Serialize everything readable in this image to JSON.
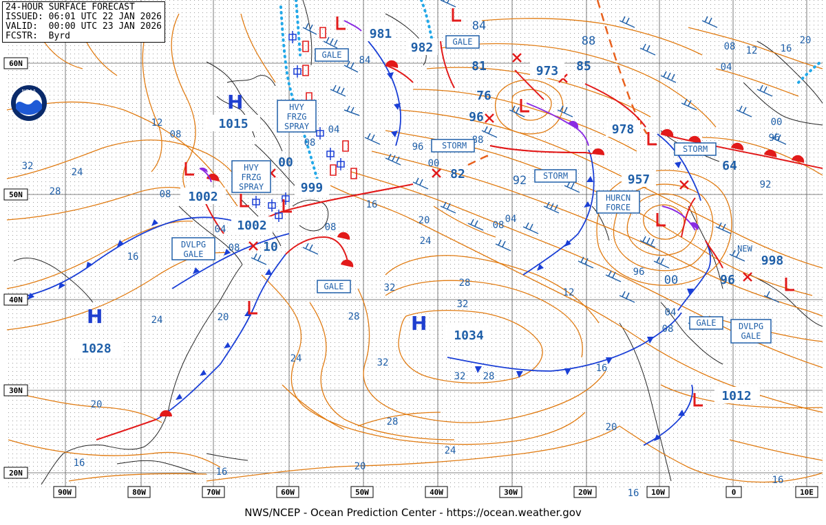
{
  "header": {
    "title": "24-HOUR SURFACE FORECAST",
    "issued": "ISSUED: 06:01 UTC 22 JAN 2026",
    "valid": "VALID:  00:00 UTC 23 JAN 2026",
    "forecaster": "FCSTR:  Byrd"
  },
  "footer": "NWS/NCEP - Ocean Prediction Center - https://ocean.weather.gov",
  "logo_text": "NOAA",
  "colors": {
    "isobar": "#e07a10",
    "label": "#1f5fa8",
    "cold_front": "#1a3fd6",
    "warm_front": "#e21a1a",
    "occluded": "#8a2be2",
    "ice": "#22a8e8",
    "grid": "#6a6a6a"
  },
  "lon_labels": [
    "90W",
    "80W",
    "70W",
    "60W",
    "50W",
    "40W",
    "30W",
    "20W",
    "10W",
    "0",
    "10E"
  ],
  "lat_labels": [
    "60N",
    "50N",
    "40N",
    "30N",
    "20N"
  ],
  "highs": [
    {
      "symbol": "H",
      "pressure": "1015"
    },
    {
      "symbol": "H",
      "pressure": "1028"
    },
    {
      "symbol": "H",
      "pressure": "1034"
    }
  ],
  "lows": [
    {
      "symbol": "L",
      "pressure": "1002"
    },
    {
      "symbol": "L",
      "pressure": "1002"
    },
    {
      "symbol": "L",
      "pressure": "999"
    },
    {
      "symbol": "L",
      "pressure": "973"
    },
    {
      "symbol": "L",
      "pressure": "978"
    },
    {
      "symbol": "L",
      "pressure": "957"
    },
    {
      "symbol": "L",
      "pressure": "1012"
    },
    {
      "symbol": "L",
      "pressure": "981"
    },
    {
      "symbol": "L",
      "pressure": "982"
    }
  ],
  "pressure_labels": [
    "981",
    "982",
    "84",
    "81",
    "973",
    "85",
    "88",
    "76",
    "96",
    "978",
    "00",
    "64",
    "96",
    "82",
    "92",
    "00",
    "10",
    "998",
    "96",
    "1034",
    "04",
    "08",
    "12",
    "16",
    "20",
    "24",
    "28",
    "32"
  ],
  "warnings": [
    "GALE",
    "GALE",
    "STORM",
    "STORM",
    "STORM",
    "HURCN FORCE",
    "DVLPG GALE",
    "GALE",
    "GALE",
    "DVLPG GALE",
    "HVY FRZG SPRAY",
    "HVY FRZG SPRAY",
    "NEW"
  ]
}
